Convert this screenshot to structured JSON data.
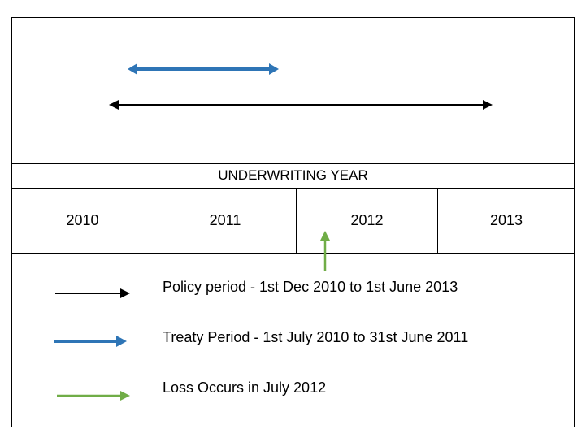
{
  "title": "UNDERWRITING YEAR",
  "years": [
    "2010",
    "2011",
    "2012",
    "2013"
  ],
  "legend": [
    {
      "label": "Policy period - 1st Dec 2010 to 1st June 2013",
      "color": "#000000"
    },
    {
      "label": "Treaty Period - 1st July 2010 to 31st June 2011",
      "color": "#2e75b6"
    },
    {
      "label": "Loss Occurs in July 2012",
      "color": "#70ad47"
    }
  ],
  "colors": {
    "policy": "#000000",
    "treaty": "#2e75b6",
    "loss": "#70ad47",
    "border": "#000000"
  }
}
